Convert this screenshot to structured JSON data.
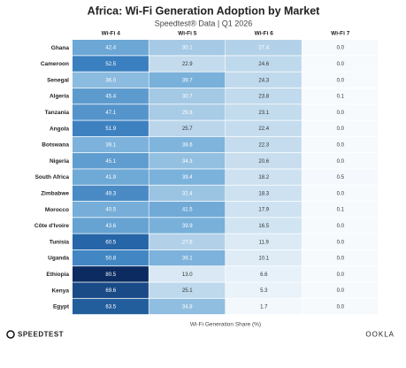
{
  "chart_data": {
    "type": "heatmap",
    "title": "Africa: Wi-Fi Generation Adoption by Market",
    "subtitle": "Speedtest® Data | Q1 2026",
    "x_label": "Wi-Fi Generation Share (%)",
    "categories": [
      "Ghana",
      "Cameroon",
      "Senegal",
      "Algeria",
      "Tanzania",
      "Angola",
      "Botswana",
      "Nigeria",
      "South Africa",
      "Zimbabwe",
      "Morocco",
      "Côte d'Ivoire",
      "Tunisia",
      "Uganda",
      "Ethiopia",
      "Kenya",
      "Egypt"
    ],
    "series": [
      {
        "name": "Wi-Fi 4",
        "values": [
          42.4,
          52.5,
          36,
          45.4,
          47.1,
          51.9,
          39.1,
          45.1,
          41.9,
          49.3,
          40.5,
          43.6,
          60.5,
          50.8,
          80.5,
          69.6,
          63.5
        ],
        "value_labels": [
          "42.4",
          "52.5",
          "36.0",
          "45.4",
          "47.1",
          "51.9",
          "39.1",
          "45.1",
          "41.9",
          "49.3",
          "40.5",
          "43.6",
          "60.5",
          "50.8",
          "80.5",
          "69.6",
          "63.5"
        ]
      },
      {
        "name": "Wi-Fi 5",
        "values": [
          30.1,
          22.9,
          39.7,
          30.7,
          29.8,
          25.7,
          38.6,
          34.3,
          39.4,
          32.4,
          41.5,
          39.9,
          27.6,
          39.1,
          13,
          25.1,
          34.8
        ],
        "value_labels": [
          "30.1",
          "22.9",
          "39.7",
          "30.7",
          "29.8",
          "25.7",
          "38.6",
          "34.3",
          "39.4",
          "32.4",
          "41.5",
          "39.9",
          "27.6",
          "39.1",
          "13.0",
          "25.1",
          "34.8"
        ]
      },
      {
        "name": "Wi-Fi 6",
        "values": [
          27.4,
          24.6,
          24.3,
          23.8,
          23.1,
          22.4,
          22.3,
          20.6,
          18.2,
          18.3,
          17.9,
          16.5,
          11.9,
          10.1,
          6.6,
          5.3,
          1.7
        ],
        "value_labels": [
          "27.4",
          "24.6",
          "24.3",
          "23.8",
          "23.1",
          "22.4",
          "22.3",
          "20.6",
          "18.2",
          "18.3",
          "17.9",
          "16.5",
          "11.9",
          "10.1",
          "6.6",
          "5.3",
          "1.7"
        ]
      },
      {
        "name": "Wi-Fi 7",
        "values": [
          0,
          0,
          0,
          0.1,
          0,
          0,
          0,
          0,
          0.5,
          0,
          0.1,
          0,
          0,
          0,
          0,
          0,
          0
        ],
        "value_labels": [
          "0.0",
          "0.0",
          "0.0",
          "0.1",
          "0.0",
          "0.0",
          "0.0",
          "0.0",
          "0.5",
          "0.0",
          "0.1",
          "0.0",
          "0.0",
          "0.0",
          "0.0",
          "0.0",
          "0.0"
        ]
      }
    ]
  },
  "footer": {
    "left": "SPEEDTEST",
    "right": "OOKLA"
  }
}
